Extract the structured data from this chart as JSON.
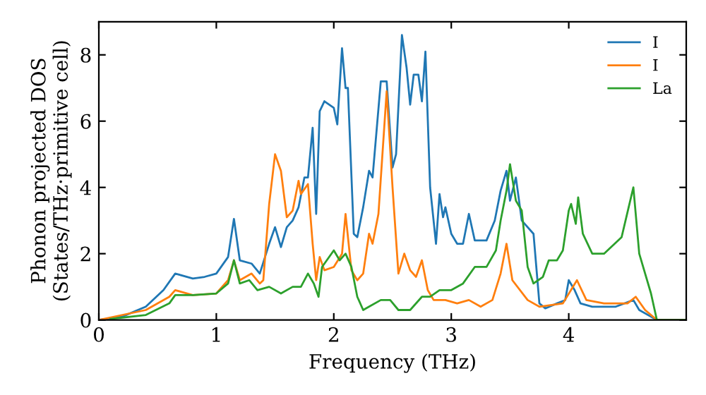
{
  "chart_data": {
    "type": "line",
    "xlabel": "Frequency (THz)",
    "ylabel": "Phonon projected DOS\n(States/THz·primitive cell)",
    "xlim": [
      0,
      5
    ],
    "ylim": [
      0,
      9
    ],
    "xticks": [
      0,
      1,
      2,
      3,
      4
    ],
    "yticks": [
      0,
      2,
      4,
      6,
      8
    ],
    "grid": false,
    "legend": "top right",
    "marker": "none",
    "line_style": "solid",
    "series": [
      {
        "name": "I",
        "color": "#1f77b4",
        "x": [
          0,
          0.2,
          0.4,
          0.55,
          0.65,
          0.8,
          0.9,
          1.0,
          1.1,
          1.15,
          1.2,
          1.3,
          1.37,
          1.45,
          1.5,
          1.55,
          1.6,
          1.65,
          1.7,
          1.75,
          1.78,
          1.82,
          1.85,
          1.88,
          1.92,
          2.0,
          2.03,
          2.07,
          2.1,
          2.12,
          2.17,
          2.2,
          2.25,
          2.3,
          2.33,
          2.4,
          2.45,
          2.5,
          2.53,
          2.58,
          2.62,
          2.65,
          2.68,
          2.72,
          2.75,
          2.78,
          2.82,
          2.87,
          2.9,
          2.93,
          2.95,
          3.0,
          3.05,
          3.1,
          3.15,
          3.2,
          3.3,
          3.37,
          3.42,
          3.47,
          3.5,
          3.55,
          3.6,
          3.7,
          3.75,
          3.8,
          3.9,
          3.97,
          4.0,
          4.05,
          4.1,
          4.2,
          4.4,
          4.55,
          4.6,
          4.75,
          5.0
        ],
        "values": [
          0,
          0.1,
          0.4,
          0.9,
          1.4,
          1.25,
          1.3,
          1.4,
          1.9,
          3.05,
          1.8,
          1.7,
          1.4,
          2.3,
          2.8,
          2.2,
          2.8,
          3.0,
          3.4,
          4.3,
          4.3,
          5.8,
          3.2,
          6.3,
          6.6,
          6.4,
          5.9,
          8.2,
          7.0,
          7.0,
          2.6,
          2.5,
          3.4,
          4.5,
          4.3,
          7.2,
          7.2,
          4.6,
          5.0,
          8.6,
          7.6,
          6.5,
          7.4,
          7.4,
          6.6,
          8.1,
          4.0,
          2.3,
          3.8,
          3.1,
          3.4,
          2.6,
          2.3,
          2.3,
          3.2,
          2.4,
          2.4,
          3.0,
          3.9,
          4.5,
          3.6,
          4.3,
          3.0,
          2.6,
          0.5,
          0.35,
          0.5,
          0.6,
          1.2,
          0.9,
          0.5,
          0.4,
          0.4,
          0.6,
          0.3,
          0,
          0
        ]
      },
      {
        "name": "I",
        "color": "#ff7f0e",
        "x": [
          0,
          0.4,
          0.6,
          0.65,
          0.8,
          1.0,
          1.1,
          1.15,
          1.2,
          1.3,
          1.37,
          1.4,
          1.45,
          1.5,
          1.55,
          1.6,
          1.65,
          1.7,
          1.72,
          1.78,
          1.82,
          1.85,
          1.88,
          1.92,
          2.0,
          2.07,
          2.1,
          2.15,
          2.2,
          2.25,
          2.3,
          2.33,
          2.38,
          2.45,
          2.5,
          2.55,
          2.6,
          2.65,
          2.7,
          2.75,
          2.8,
          2.85,
          2.95,
          3.05,
          3.15,
          3.25,
          3.35,
          3.42,
          3.47,
          3.52,
          3.65,
          3.75,
          3.95,
          4.07,
          4.15,
          4.3,
          4.5,
          4.57,
          4.65,
          4.75,
          5.0
        ],
        "values": [
          0,
          0.3,
          0.7,
          0.9,
          0.75,
          0.8,
          1.2,
          1.8,
          1.2,
          1.4,
          1.1,
          1.2,
          3.5,
          5.0,
          4.5,
          3.1,
          3.3,
          4.2,
          3.8,
          4.1,
          2.3,
          1.2,
          1.9,
          1.5,
          1.6,
          2.0,
          3.2,
          1.5,
          1.2,
          1.4,
          2.6,
          2.3,
          3.2,
          6.9,
          4.0,
          1.4,
          2.0,
          1.5,
          1.3,
          1.8,
          0.9,
          0.6,
          0.6,
          0.5,
          0.6,
          0.4,
          0.6,
          1.4,
          2.3,
          1.2,
          0.6,
          0.4,
          0.5,
          1.2,
          0.6,
          0.5,
          0.5,
          0.7,
          0.3,
          0,
          0
        ]
      },
      {
        "name": "La",
        "color": "#2ca02c",
        "x": [
          0.1,
          0.4,
          0.6,
          0.65,
          0.8,
          1.0,
          1.1,
          1.15,
          1.2,
          1.28,
          1.35,
          1.45,
          1.55,
          1.65,
          1.72,
          1.78,
          1.83,
          1.87,
          1.9,
          2.0,
          2.05,
          2.1,
          2.15,
          2.2,
          2.25,
          2.3,
          2.4,
          2.48,
          2.55,
          2.65,
          2.75,
          2.82,
          2.9,
          3.0,
          3.1,
          3.2,
          3.3,
          3.38,
          3.42,
          3.47,
          3.5,
          3.55,
          3.6,
          3.65,
          3.7,
          3.78,
          3.83,
          3.9,
          3.95,
          4.0,
          4.02,
          4.06,
          4.08,
          4.12,
          4.2,
          4.3,
          4.45,
          4.55,
          4.6,
          4.7,
          4.75,
          5.0
        ],
        "values": [
          0.03,
          0.15,
          0.5,
          0.75,
          0.75,
          0.8,
          1.1,
          1.8,
          1.1,
          1.2,
          0.9,
          1.0,
          0.8,
          1.0,
          1.0,
          1.4,
          1.1,
          0.7,
          1.6,
          2.1,
          1.8,
          2.0,
          1.6,
          0.7,
          0.3,
          0.4,
          0.6,
          0.6,
          0.3,
          0.3,
          0.7,
          0.7,
          0.9,
          0.9,
          1.1,
          1.6,
          1.6,
          2.1,
          3.0,
          3.9,
          4.7,
          3.6,
          3.3,
          1.6,
          1.1,
          1.3,
          1.8,
          1.8,
          2.1,
          3.3,
          3.5,
          2.9,
          3.7,
          2.6,
          2.0,
          2.0,
          2.5,
          4.0,
          2.0,
          0.8,
          0,
          0
        ]
      }
    ]
  }
}
